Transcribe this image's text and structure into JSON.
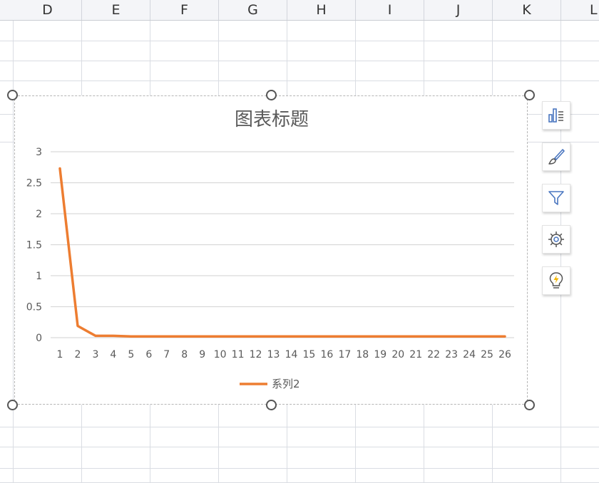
{
  "columns": [
    "D",
    "E",
    "F",
    "G",
    "H",
    "I",
    "J",
    "K",
    "L"
  ],
  "side_buttons": [
    {
      "name": "chart-elements-icon"
    },
    {
      "name": "chart-style-brush-icon"
    },
    {
      "name": "chart-filter-icon"
    },
    {
      "name": "chart-settings-gear-icon"
    },
    {
      "name": "smart-suggestion-bulb-icon"
    }
  ],
  "colors": {
    "series": "#ed7d31",
    "gridline": "#d9d9d9",
    "axis_text": "#595959"
  },
  "chart_data": {
    "type": "line",
    "title": "图表标题",
    "categories": [
      "1",
      "2",
      "3",
      "4",
      "5",
      "6",
      "7",
      "8",
      "9",
      "10",
      "11",
      "12",
      "13",
      "14",
      "15",
      "16",
      "17",
      "18",
      "19",
      "20",
      "21",
      "22",
      "23",
      "24",
      "25",
      "26"
    ],
    "series": [
      {
        "name": "系列2",
        "values": [
          2.73,
          0.19,
          0.03,
          0.03,
          0.02,
          0.02,
          0.02,
          0.02,
          0.02,
          0.02,
          0.02,
          0.02,
          0.02,
          0.02,
          0.02,
          0.02,
          0.02,
          0.02,
          0.02,
          0.02,
          0.02,
          0.02,
          0.02,
          0.02,
          0.02,
          0.02
        ]
      }
    ],
    "yticks": [
      "0",
      "0.5",
      "1",
      "1.5",
      "2",
      "2.5",
      "3"
    ],
    "ylim": [
      0,
      3
    ],
    "legend": "bottom",
    "grid": true
  }
}
